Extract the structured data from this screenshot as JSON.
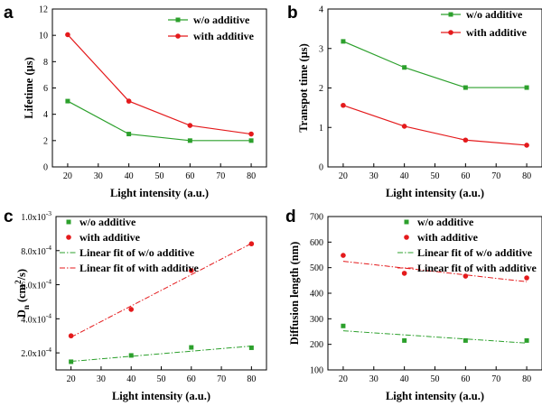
{
  "chart_data": [
    {
      "type": "line",
      "panel_label": "a",
      "xlabel": "Light intensity (a.u.)",
      "ylabel": "Lifetime (μs)",
      "x": [
        20,
        40,
        60,
        80
      ],
      "xlim": [
        15,
        85
      ],
      "ylim": [
        0,
        12
      ],
      "xticks": [
        "20",
        "30",
        "40",
        "50",
        "60",
        "70",
        "80"
      ],
      "yticks": [
        "0",
        "2",
        "4",
        "6",
        "8",
        "10",
        "12"
      ],
      "legend_position": "top-right",
      "series": [
        {
          "name": "w/o additive",
          "values": [
            5.0,
            2.5,
            2.0,
            2.0
          ],
          "color": "#2ca02c",
          "marker": "square",
          "line": "solid"
        },
        {
          "name": "with additive",
          "values": [
            10.05,
            5.0,
            3.15,
            2.5
          ],
          "color": "#e41a1c",
          "marker": "circle",
          "line": "solid"
        }
      ]
    },
    {
      "type": "line",
      "panel_label": "b",
      "xlabel": "Light intensity (a.u.)",
      "ylabel": "Transpot time (μs)",
      "x": [
        20,
        40,
        60,
        80
      ],
      "xlim": [
        15,
        85
      ],
      "ylim": [
        0,
        4
      ],
      "xticks": [
        "20",
        "30",
        "40",
        "50",
        "60",
        "70",
        "80"
      ],
      "yticks": [
        "0",
        "1",
        "2",
        "3",
        "4"
      ],
      "legend_position": "top-right",
      "series": [
        {
          "name": "w/o  additive",
          "values": [
            3.18,
            2.52,
            2.01,
            2.01
          ],
          "color": "#2ca02c",
          "marker": "square",
          "line": "solid"
        },
        {
          "name": "with additive",
          "values": [
            1.56,
            1.03,
            0.68,
            0.55
          ],
          "color": "#e41a1c",
          "marker": "circle",
          "line": "solid"
        }
      ]
    },
    {
      "type": "scatter",
      "panel_label": "c",
      "xlabel": "Light intensity (a.u.)",
      "ylabel_main": "D",
      "ylabel_sub": "n",
      "ylabel_unit": "(cm",
      "ylabel_sup": "2",
      "ylabel_tail": "/s)",
      "x": [
        20,
        40,
        60,
        80
      ],
      "xlim": [
        15,
        85
      ],
      "ylim": [
        0.0001,
        0.001
      ],
      "tick_base": "10",
      "xticks": [
        "20",
        "30",
        "40",
        "50",
        "60",
        "70",
        "80"
      ],
      "yticks": [
        {
          "value": 0.0002,
          "mantissa": "2.0x",
          "exp": "-4"
        },
        {
          "value": 0.0004,
          "mantissa": "4.0x",
          "exp": "-4"
        },
        {
          "value": 0.0006,
          "mantissa": "6.0x",
          "exp": "-4"
        },
        {
          "value": 0.0008,
          "mantissa": "8.0x",
          "exp": "-4"
        },
        {
          "value": 0.001,
          "mantissa": "1.0x",
          "exp": "-3"
        }
      ],
      "legend_position": "top-left",
      "series": [
        {
          "name": "w/o additive",
          "values": [
            0.000148,
            0.000185,
            0.000232,
            0.00023
          ],
          "color": "#2ca02c",
          "marker": "square"
        },
        {
          "name": "with additive",
          "values": [
            0.0003,
            0.000455,
            0.000683,
            0.00084
          ],
          "color": "#e41a1c",
          "marker": "circle"
        }
      ],
      "fits": [
        {
          "name": "Linear fit of w/o additive",
          "y_start": 0.00015,
          "y_end": 0.00024,
          "color": "#2ca02c",
          "dash": "dashdot"
        },
        {
          "name": "Linear fit of with additive",
          "y_start": 0.000292,
          "y_end": 0.000842,
          "color": "#e41a1c",
          "dash": "dashdot"
        }
      ]
    },
    {
      "type": "scatter",
      "panel_label": "d",
      "xlabel": "Light intensity (a.u.)",
      "ylabel": "Diffusion length (nm)",
      "x": [
        20,
        40,
        60,
        80
      ],
      "xlim": [
        15,
        85
      ],
      "ylim": [
        100,
        700
      ],
      "xticks": [
        "20",
        "30",
        "40",
        "50",
        "60",
        "70",
        "80"
      ],
      "yticks": [
        "100",
        "200",
        "300",
        "400",
        "500",
        "600",
        "700"
      ],
      "legend_position": "top-right",
      "series": [
        {
          "name": "w/o additive",
          "values": [
            272,
            215,
            215,
            215
          ],
          "color": "#2ca02c",
          "marker": "square"
        },
        {
          "name": "with additive",
          "values": [
            548,
            478,
            467,
            460
          ],
          "color": "#e41a1c",
          "marker": "circle"
        }
      ],
      "fits": [
        {
          "name": "Linear fit of w/o additive",
          "y_start": 253,
          "y_end": 205,
          "color": "#2ca02c",
          "dash": "dashdot"
        },
        {
          "name": "Linear fit of with additive",
          "y_start": 525,
          "y_end": 445,
          "color": "#e41a1c",
          "dash": "dashdot"
        }
      ]
    }
  ]
}
